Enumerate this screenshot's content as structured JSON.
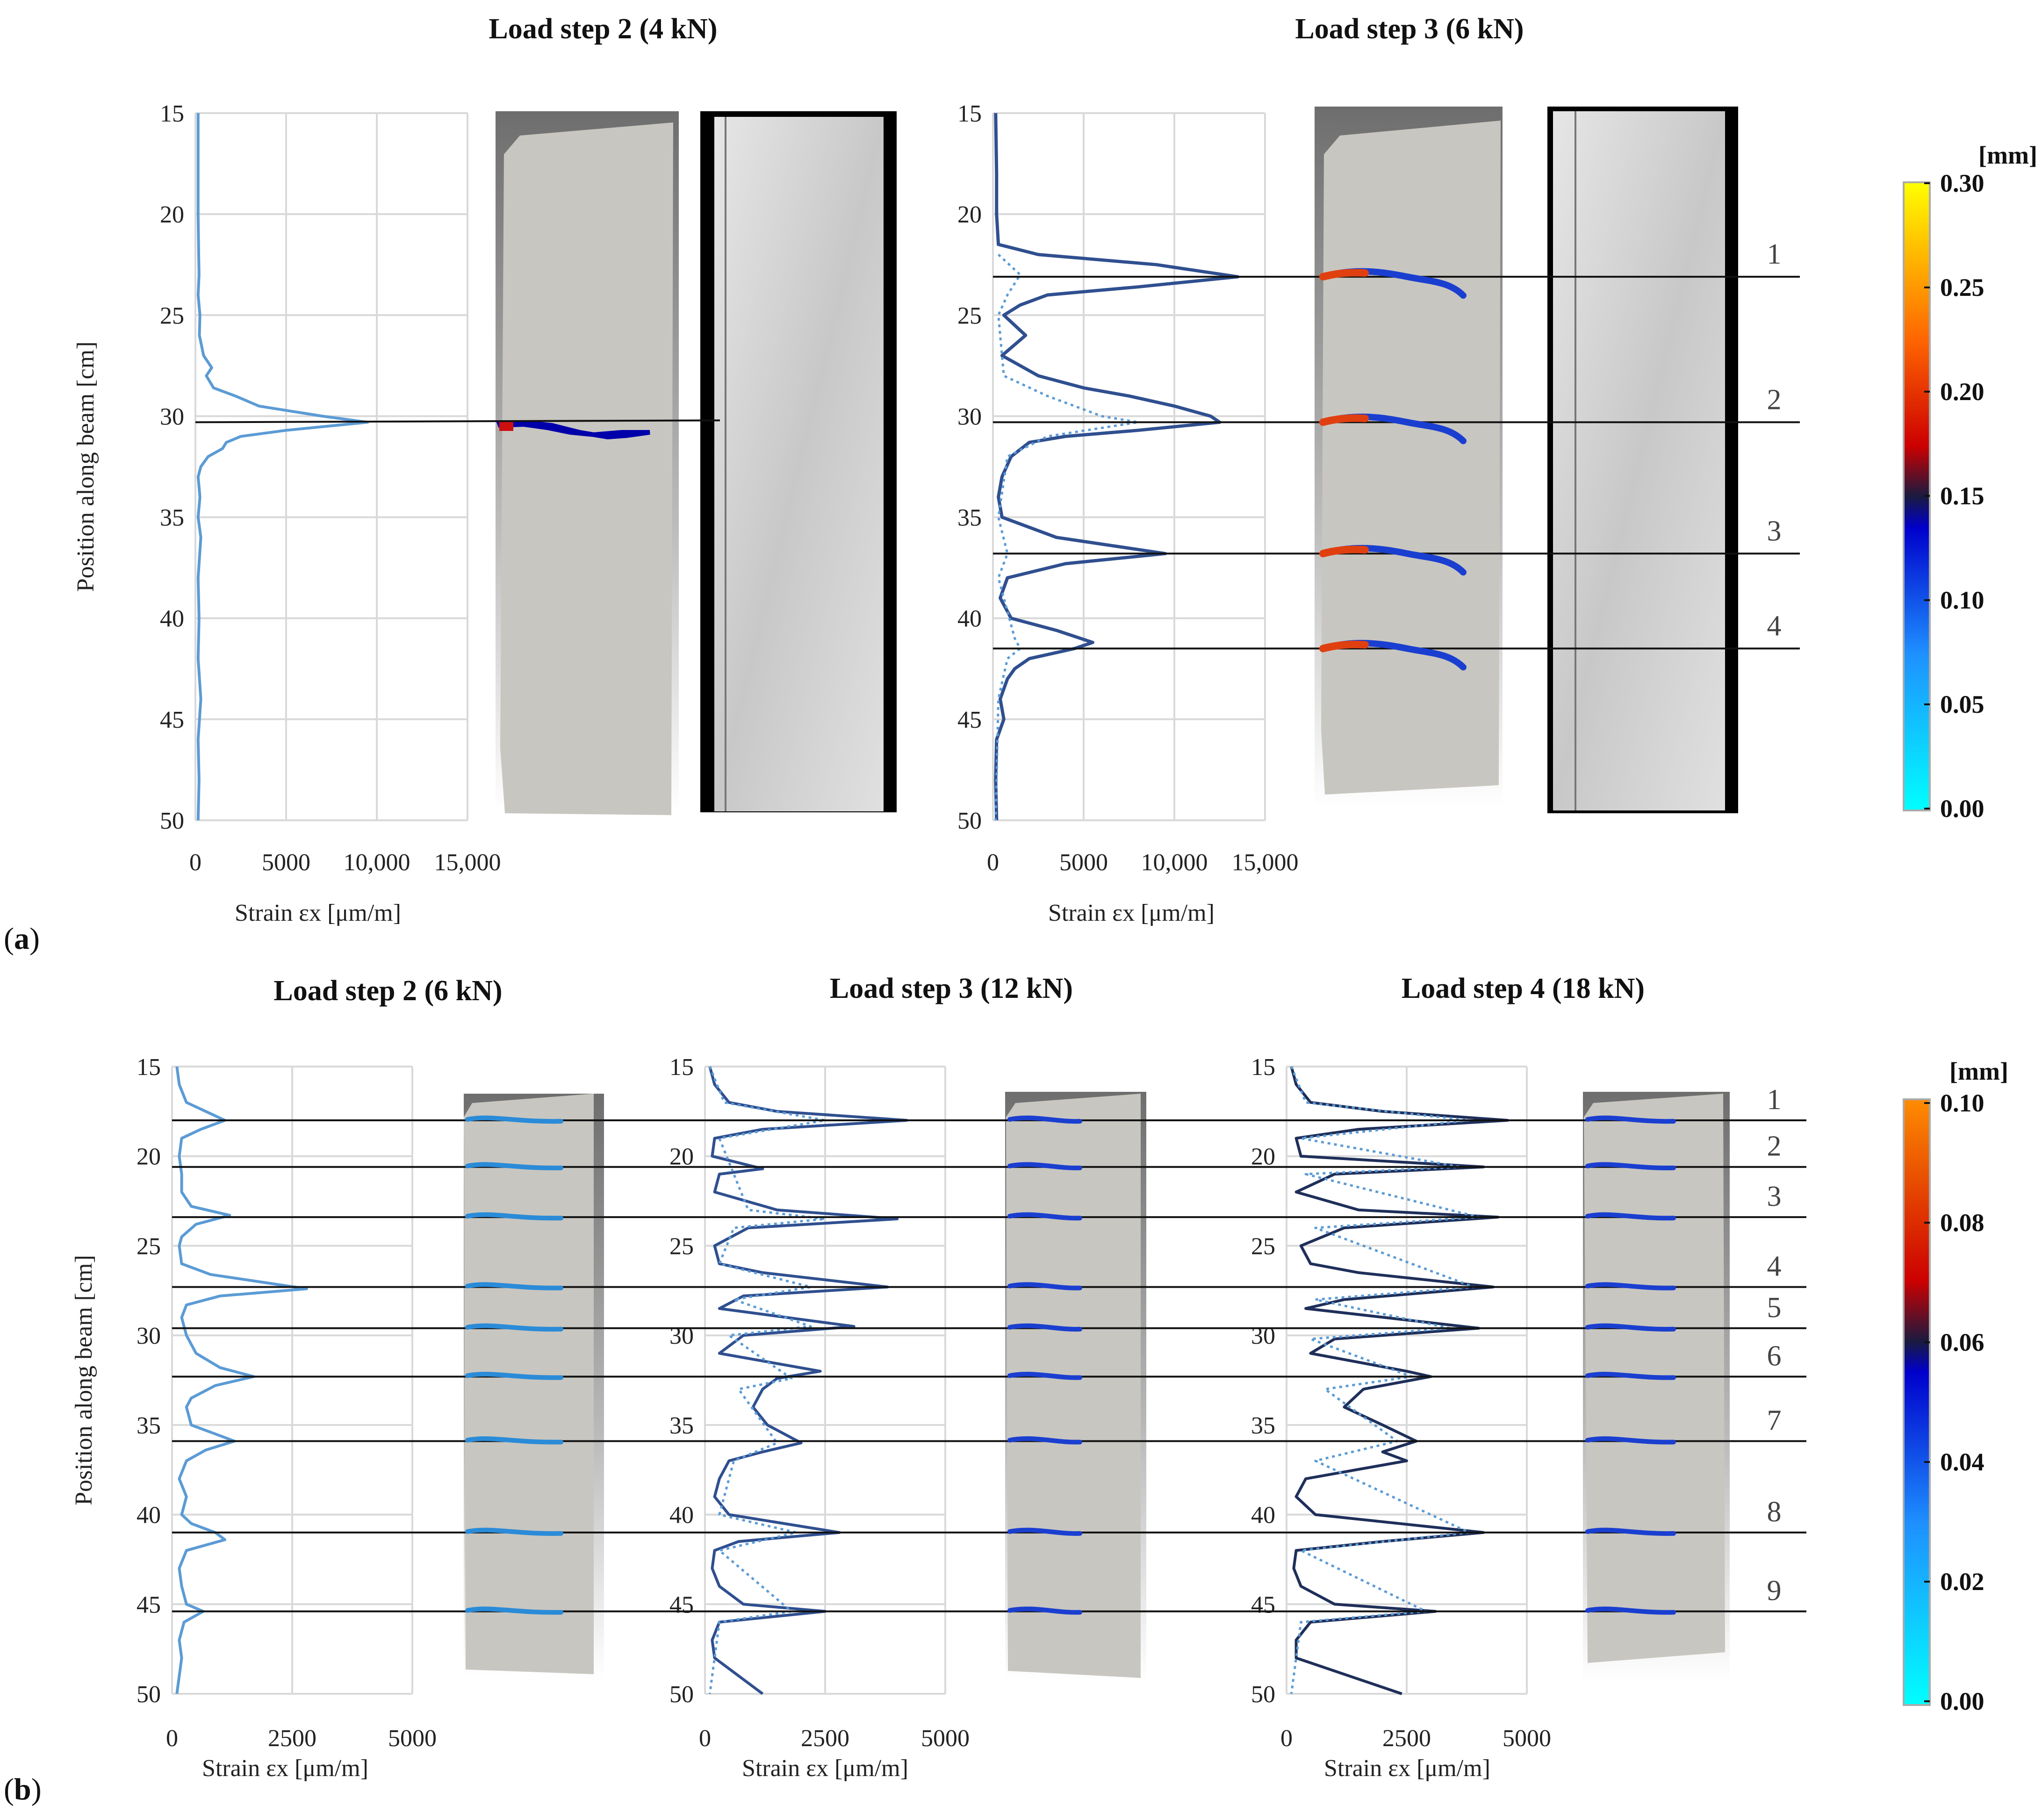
{
  "panels": [
    {
      "label": "(a)",
      "label_bold": "a"
    },
    {
      "label": "(b)",
      "label_bold": "b"
    }
  ],
  "colors": {
    "step2": "#5b9bd5",
    "step3": "#2f4f8f",
    "step4": "#1f2f5a",
    "grid": "#d9d9d9",
    "specimen": "#c8c6c0",
    "background_dark": "#6e6e6e"
  },
  "colorbars": [
    {
      "unit": "[mm]",
      "ticks": [
        "0.00",
        "0.05",
        "0.10",
        "0.15",
        "0.20",
        "0.25",
        "0.30"
      ],
      "min": 0,
      "max": 0.3
    },
    {
      "unit": "[mm]",
      "ticks": [
        "0.00",
        "0.02",
        "0.04",
        "0.06",
        "0.08",
        "0.10"
      ],
      "min": 0,
      "max": 0.1
    }
  ],
  "chart_data": [
    {
      "type": "line",
      "panel": "a",
      "title": "Load step 2 (4 kN)",
      "xlabel": "Strain εx [μm/m]",
      "ylabel": "Position along beam [cm]",
      "xlim": [
        0,
        15000
      ],
      "ylim": [
        15,
        50
      ],
      "y_inverted": true,
      "xticks": [
        "0",
        "5000",
        "10,000",
        "15,000"
      ],
      "yticks": [
        "15",
        "20",
        "25",
        "30",
        "35",
        "40",
        "45",
        "50"
      ],
      "grid": true,
      "series": [
        {
          "line": "solid",
          "y": [
            15,
            20,
            22,
            23,
            24,
            25,
            26,
            27,
            27.6,
            28,
            28.6,
            29,
            29.5,
            30,
            30.3,
            30.7,
            31,
            31.3,
            31.6,
            32,
            32.5,
            33,
            34,
            35,
            36,
            38,
            40,
            42,
            44,
            46,
            48,
            50
          ],
          "x": [
            150,
            150,
            180,
            200,
            150,
            250,
            220,
            450,
            900,
            600,
            1000,
            2200,
            3500,
            7000,
            9500,
            5000,
            2500,
            1700,
            1500,
            700,
            300,
            150,
            250,
            150,
            300,
            150,
            200,
            150,
            300,
            150,
            200,
            150
          ]
        }
      ]
    },
    {
      "type": "line",
      "panel": "a",
      "title": "Load step 3 (6 kN)",
      "xlabel": "Strain εx [μm/m]",
      "xlim": [
        0,
        15000
      ],
      "ylim": [
        15,
        50
      ],
      "y_inverted": true,
      "xticks": [
        "0",
        "5000",
        "10,000",
        "15,000"
      ],
      "yticks": [
        "15",
        "20",
        "25",
        "30",
        "35",
        "40",
        "45",
        "50"
      ],
      "grid": true,
      "crack_labels": [
        "1",
        "2",
        "3",
        "4"
      ],
      "crack_positions": [
        23.1,
        30.3,
        36.8,
        41.5
      ],
      "series": [
        {
          "line": "solid",
          "y": [
            15,
            18,
            20,
            21.5,
            22,
            22.5,
            23.1,
            23.6,
            24,
            24.5,
            25,
            26,
            27,
            28,
            28.6,
            29,
            29.5,
            30,
            30.3,
            30.7,
            31,
            31.3,
            32,
            33,
            34,
            35,
            36,
            36.8,
            37.3,
            38,
            39,
            40,
            40.6,
            41.2,
            41.5,
            42,
            42.5,
            43,
            44,
            45,
            46,
            48,
            50
          ],
          "x": [
            150,
            200,
            200,
            300,
            2500,
            9000,
            13500,
            8000,
            3000,
            1500,
            600,
            1800,
            500,
            2500,
            5000,
            7500,
            10000,
            12000,
            12500,
            8000,
            4000,
            2000,
            1000,
            500,
            300,
            500,
            3500,
            9500,
            4000,
            800,
            400,
            1000,
            3500,
            5500,
            4500,
            2000,
            1200,
            800,
            400,
            600,
            200,
            150,
            200
          ]
        },
        {
          "line": "dotted",
          "y": [
            22,
            23,
            24,
            25,
            28,
            29,
            30,
            30.3,
            31,
            32,
            35,
            36.8,
            38,
            41,
            41.5,
            42,
            44,
            50
          ],
          "x": [
            300,
            1500,
            800,
            300,
            600,
            3000,
            6000,
            8000,
            3000,
            800,
            300,
            800,
            300,
            1200,
            1500,
            800,
            300,
            150
          ]
        }
      ]
    },
    {
      "type": "line",
      "panel": "b",
      "title": "Load step 2 (6 kN)",
      "xlabel": "Strain εx [μm/m]",
      "ylabel": "Position along beam [cm]",
      "xlim": [
        0,
        5000
      ],
      "ylim": [
        15,
        50
      ],
      "y_inverted": true,
      "xticks": [
        "0",
        "2500",
        "5000"
      ],
      "yticks": [
        "15",
        "20",
        "25",
        "30",
        "35",
        "40",
        "45",
        "50"
      ],
      "grid": true,
      "series": [
        {
          "line": "solid",
          "y": [
            15,
            16,
            17,
            17.5,
            18,
            18.5,
            19,
            20,
            21,
            22,
            22.8,
            23.3,
            23.8,
            24.5,
            25,
            26,
            26.6,
            27,
            27.4,
            27.8,
            28.3,
            29,
            30,
            31,
            31.8,
            32.3,
            32.8,
            33.5,
            34,
            35,
            35.5,
            35.9,
            36.4,
            37,
            38,
            39,
            40,
            40.5,
            41,
            41.4,
            42,
            43,
            44,
            45,
            45.4,
            46,
            47,
            48,
            50
          ],
          "x": [
            100,
            150,
            300,
            700,
            1100,
            600,
            200,
            150,
            200,
            200,
            400,
            1200,
            500,
            200,
            150,
            200,
            800,
            1800,
            2800,
            1000,
            300,
            200,
            300,
            500,
            1000,
            1700,
            900,
            400,
            300,
            400,
            900,
            1300,
            700,
            300,
            150,
            300,
            200,
            400,
            900,
            1100,
            300,
            150,
            200,
            300,
            650,
            250,
            150,
            200,
            100
          ]
        }
      ]
    },
    {
      "type": "line",
      "panel": "b",
      "title": "Load step 3 (12 kN)",
      "xlabel": "Strain εx [μm/m]",
      "xlim": [
        0,
        5000
      ],
      "ylim": [
        15,
        50
      ],
      "y_inverted": true,
      "xticks": [
        "0",
        "2500",
        "5000"
      ],
      "yticks": [
        "15",
        "20",
        "25",
        "30",
        "35",
        "40",
        "45",
        "50"
      ],
      "grid": true,
      "series": [
        {
          "line": "solid",
          "y": [
            15,
            16,
            17,
            17.5,
            18,
            18.5,
            19,
            20,
            20.7,
            21,
            22,
            23,
            23.5,
            24,
            25,
            26,
            26.5,
            27.3,
            27.8,
            28.5,
            29.5,
            30,
            31,
            32,
            32.4,
            33,
            34,
            35,
            36,
            36.5,
            37,
            38,
            39,
            40,
            41,
            41.5,
            42,
            43,
            44,
            45,
            45.4,
            46,
            47,
            48,
            50
          ],
          "x": [
            100,
            200,
            500,
            1500,
            4200,
            1200,
            200,
            150,
            1200,
            300,
            200,
            1500,
            4000,
            900,
            200,
            300,
            1200,
            3800,
            800,
            300,
            3100,
            800,
            300,
            2400,
            1500,
            1200,
            1000,
            1300,
            2000,
            1200,
            500,
            300,
            200,
            500,
            2800,
            700,
            200,
            150,
            300,
            800,
            2500,
            300,
            150,
            200,
            1200
          ]
        },
        {
          "line": "dotted",
          "y": [
            15,
            17,
            18,
            19,
            23,
            23.5,
            24,
            26,
            27.3,
            28,
            29.5,
            30,
            32.4,
            33,
            36,
            37,
            40,
            41,
            42,
            45.4,
            46,
            50
          ],
          "x": [
            100,
            400,
            2500,
            300,
            900,
            2500,
            600,
            300,
            2200,
            600,
            2200,
            500,
            1800,
            700,
            1500,
            600,
            300,
            1900,
            300,
            1800,
            300,
            100
          ]
        }
      ]
    },
    {
      "type": "line",
      "panel": "b",
      "title": "Load step 4 (18 kN)",
      "xlabel": "Strain εx [μm/m]",
      "xlim": [
        0,
        5000
      ],
      "ylim": [
        15,
        50
      ],
      "y_inverted": true,
      "xticks": [
        "0",
        "2500",
        "5000"
      ],
      "yticks": [
        "15",
        "20",
        "25",
        "30",
        "35",
        "40",
        "45",
        "50"
      ],
      "grid": true,
      "crack_labels": [
        "1",
        "2",
        "3",
        "4",
        "5",
        "6",
        "7",
        "8",
        "9"
      ],
      "crack_positions": [
        18,
        20.6,
        23.4,
        27.3,
        29.6,
        32.3,
        35.9,
        41,
        45.4
      ],
      "series": [
        {
          "line": "solid",
          "y": [
            15,
            16,
            17,
            17.5,
            18,
            18.5,
            19,
            20,
            20.6,
            21,
            22,
            23,
            23.4,
            24,
            25,
            26,
            26.5,
            27.3,
            28,
            28.5,
            29.6,
            30.2,
            31,
            32,
            32.3,
            33,
            34,
            35,
            35.9,
            36.5,
            37,
            38,
            39,
            40,
            41,
            41.5,
            42,
            43,
            44,
            45,
            45.4,
            46,
            47,
            48,
            50
          ],
          "x": [
            100,
            200,
            500,
            2000,
            4600,
            1500,
            200,
            300,
            4100,
            1000,
            200,
            1500,
            4400,
            1200,
            300,
            500,
            1500,
            4300,
            1200,
            400,
            4000,
            1000,
            500,
            2500,
            3000,
            1600,
            1200,
            2000,
            2700,
            2000,
            2500,
            400,
            200,
            600,
            4100,
            2000,
            200,
            150,
            300,
            1000,
            3100,
            500,
            200,
            200,
            2400
          ]
        },
        {
          "line": "dotted",
          "y": [
            15,
            17,
            18,
            19,
            20.6,
            21,
            23.4,
            24,
            27.3,
            28,
            29.6,
            30.2,
            32.3,
            33,
            35.9,
            37,
            41,
            42,
            45.4,
            46,
            50
          ],
          "x": [
            100,
            400,
            3800,
            300,
            3600,
            400,
            4000,
            600,
            3900,
            600,
            3400,
            500,
            2600,
            800,
            2300,
            600,
            3800,
            300,
            2900,
            300,
            100
          ]
        }
      ]
    }
  ]
}
